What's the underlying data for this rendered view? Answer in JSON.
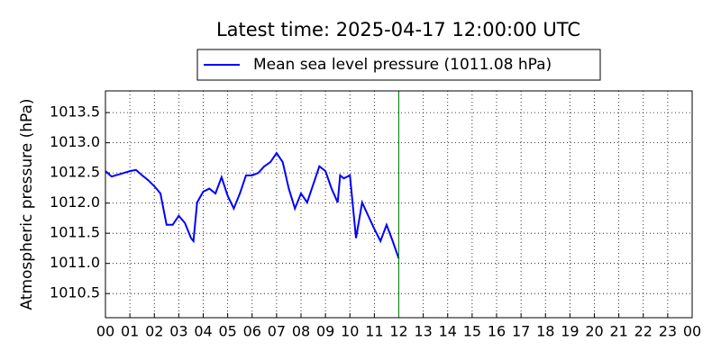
{
  "chart_data": {
    "type": "line",
    "title": "Latest time: 2025-04-17 12:00:00 UTC",
    "ylabel": "Atmospheric pressure (hPa)",
    "legend": "upper center",
    "grid": true,
    "vline_x": 12,
    "vline_color": "#008000",
    "x": [
      0,
      0.25,
      0.5,
      0.75,
      1,
      1.25,
      1.5,
      1.75,
      2,
      2.25,
      2.5,
      2.75,
      3,
      3.25,
      3.5,
      3.6,
      3.75,
      4,
      4.25,
      4.5,
      4.75,
      5,
      5.25,
      5.5,
      5.75,
      6,
      6.25,
      6.5,
      6.75,
      7,
      7.25,
      7.5,
      7.75,
      8,
      8.25,
      8.5,
      8.75,
      9,
      9.25,
      9.5,
      9.6,
      9.75,
      10,
      10.25,
      10.5,
      10.75,
      11,
      11.25,
      11.5,
      11.75,
      12
    ],
    "series": [
      {
        "name": "Mean sea level pressure (1011.08 hPa)",
        "color": "#0000ff",
        "values": [
          1012.53,
          1012.44,
          1012.47,
          1012.5,
          1012.53,
          1012.55,
          1012.46,
          1012.38,
          1012.28,
          1012.16,
          1011.64,
          1011.64,
          1011.79,
          1011.67,
          1011.42,
          1011.37,
          1012.01,
          1012.19,
          1012.24,
          1012.16,
          1012.43,
          1012.12,
          1011.91,
          1012.16,
          1012.46,
          1012.46,
          1012.5,
          1012.61,
          1012.68,
          1012.83,
          1012.68,
          1012.24,
          1011.91,
          1012.16,
          1012.01,
          1012.31,
          1012.61,
          1012.53,
          1012.24,
          1012.01,
          1012.46,
          1012.41,
          1012.46,
          1011.42,
          1012.01,
          1011.79,
          1011.57,
          1011.37,
          1011.64,
          1011.37,
          1011.08
        ]
      }
    ],
    "xlim": [
      0,
      24
    ],
    "xticks": [
      {
        "value": 0,
        "label": "00"
      },
      {
        "value": 1,
        "label": "01"
      },
      {
        "value": 2,
        "label": "02"
      },
      {
        "value": 3,
        "label": "03"
      },
      {
        "value": 4,
        "label": "04"
      },
      {
        "value": 5,
        "label": "05"
      },
      {
        "value": 6,
        "label": "06"
      },
      {
        "value": 7,
        "label": "07"
      },
      {
        "value": 8,
        "label": "08"
      },
      {
        "value": 9,
        "label": "09"
      },
      {
        "value": 10,
        "label": "10"
      },
      {
        "value": 11,
        "label": "11"
      },
      {
        "value": 12,
        "label": "12"
      },
      {
        "value": 13,
        "label": "13"
      },
      {
        "value": 14,
        "label": "14"
      },
      {
        "value": 15,
        "label": "15"
      },
      {
        "value": 16,
        "label": "16"
      },
      {
        "value": 17,
        "label": "17"
      },
      {
        "value": 18,
        "label": "18"
      },
      {
        "value": 19,
        "label": "19"
      },
      {
        "value": 20,
        "label": "20"
      },
      {
        "value": 21,
        "label": "21"
      },
      {
        "value": 22,
        "label": "22"
      },
      {
        "value": 23,
        "label": "23"
      },
      {
        "value": 24,
        "label": "00"
      }
    ],
    "ylim": [
      1010.1,
      1013.86
    ],
    "yticks": [
      1010.5,
      {
        "value": 1011,
        "label": "1011.0"
      },
      1011.5,
      {
        "value": 1012,
        "label": "1012.0"
      },
      1012.5,
      {
        "value": 1013,
        "label": "1013.0"
      },
      1013.5
    ]
  }
}
